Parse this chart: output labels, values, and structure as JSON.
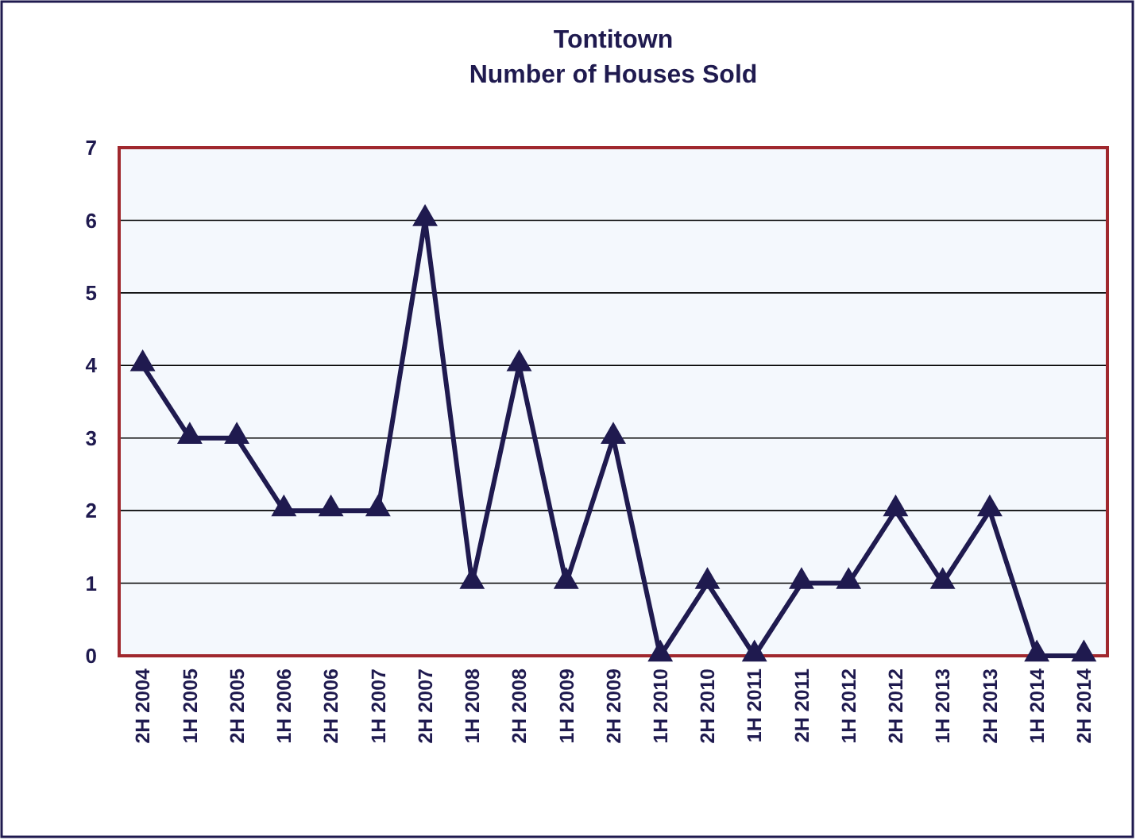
{
  "chart_data": {
    "type": "line",
    "title": "Tontitown\nNumber of Houses Sold",
    "categories": [
      "2H 2004",
      "1H 2005",
      "2H 2005",
      "1H 2006",
      "2H 2006",
      "1H 2007",
      "2H 2007",
      "1H 2008",
      "2H 2008",
      "1H 2009",
      "2H 2009",
      "1H 2010",
      "2H 2010",
      "1H 2011",
      "2H 2011",
      "1H 2012",
      "2H 2012",
      "1H 2013",
      "2H 2013",
      "1H 2014",
      "2H 2014"
    ],
    "series": [
      {
        "color": "#1f1a4f",
        "values": [
          4,
          3,
          3,
          2,
          2,
          2,
          6,
          1,
          4,
          1,
          3,
          0,
          1,
          0,
          1,
          1,
          2,
          1,
          2,
          0,
          0
        ]
      }
    ],
    "ylim": [
      0,
      7
    ],
    "yticks": [
      0,
      1,
      2,
      3,
      4,
      5,
      6,
      7
    ],
    "grid": "y",
    "marker": "triangle",
    "line_style": "solid"
  }
}
